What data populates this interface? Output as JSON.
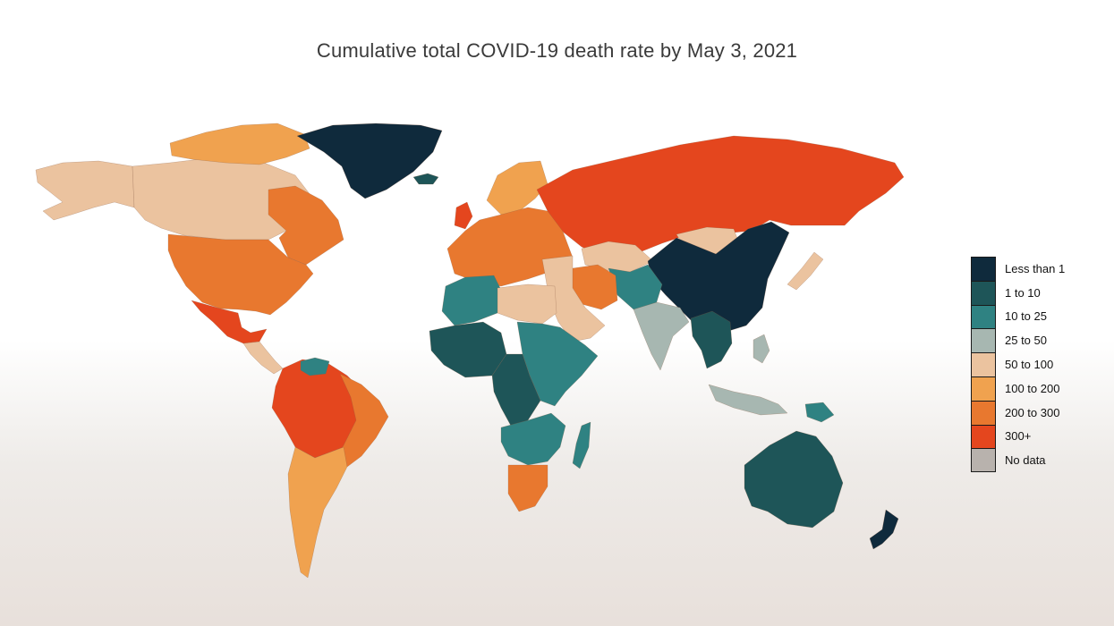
{
  "title": "Cumulative total COVID-19 death rate by May 3, 2021",
  "legend": {
    "items": [
      {
        "label": "Less than 1",
        "color": "#0f2a3c"
      },
      {
        "label": "1 to 10",
        "color": "#1e5558"
      },
      {
        "label": "10 to 25",
        "color": "#2f8282"
      },
      {
        "label": "25 to 50",
        "color": "#a7b7b1"
      },
      {
        "label": "50 to 100",
        "color": "#ebc39f"
      },
      {
        "label": "100 to 200",
        "color": "#f0a24f"
      },
      {
        "label": "200 to 300",
        "color": "#e8782f"
      },
      {
        "label": "300+",
        "color": "#e4461e"
      },
      {
        "label": "No data",
        "color": "#b8b2ad"
      }
    ]
  },
  "regions": [
    {
      "name": "greenland",
      "category": "Less than 1"
    },
    {
      "name": "canada",
      "category": "50 to 100"
    },
    {
      "name": "alaska",
      "category": "50 to 100"
    },
    {
      "name": "canada-east",
      "category": "200 to 300"
    },
    {
      "name": "arctic-islands",
      "category": "100 to 200"
    },
    {
      "name": "united-states",
      "category": "200 to 300"
    },
    {
      "name": "mexico",
      "category": "300+"
    },
    {
      "name": "central-america",
      "category": "50 to 100"
    },
    {
      "name": "south-america-north",
      "category": "300+"
    },
    {
      "name": "brazil-east",
      "category": "200 to 300"
    },
    {
      "name": "argentina-chile",
      "category": "100 to 200"
    },
    {
      "name": "venezuela",
      "category": "10 to 25"
    },
    {
      "name": "scandinavia",
      "category": "100 to 200"
    },
    {
      "name": "europe",
      "category": "200 to 300"
    },
    {
      "name": "russia",
      "category": "300+"
    },
    {
      "name": "kazakhstan",
      "category": "50 to 100"
    },
    {
      "name": "mongolia",
      "category": "50 to 100"
    },
    {
      "name": "china",
      "category": "Less than 1"
    },
    {
      "name": "japan",
      "category": "50 to 100"
    },
    {
      "name": "middle-east",
      "category": "50 to 100"
    },
    {
      "name": "iran",
      "category": "200 to 300"
    },
    {
      "name": "central-asia",
      "category": "10 to 25"
    },
    {
      "name": "india",
      "category": "25 to 50"
    },
    {
      "name": "southeast-asia",
      "category": "1 to 10"
    },
    {
      "name": "indonesia",
      "category": "25 to 50"
    },
    {
      "name": "philippines",
      "category": "25 to 50"
    },
    {
      "name": "north-africa",
      "category": "10 to 25"
    },
    {
      "name": "libya-egypt",
      "category": "50 to 100"
    },
    {
      "name": "west-africa",
      "category": "1 to 10"
    },
    {
      "name": "central-africa",
      "category": "1 to 10"
    },
    {
      "name": "east-africa",
      "category": "10 to 25"
    },
    {
      "name": "southern-africa",
      "category": "10 to 25"
    },
    {
      "name": "south-africa",
      "category": "200 to 300"
    },
    {
      "name": "madagascar",
      "category": "10 to 25"
    },
    {
      "name": "australia",
      "category": "1 to 10"
    },
    {
      "name": "new-zealand",
      "category": "Less than 1"
    },
    {
      "name": "papua-new-guinea",
      "category": "10 to 25"
    },
    {
      "name": "iceland",
      "category": "1 to 10"
    },
    {
      "name": "uk",
      "category": "300+"
    }
  ]
}
